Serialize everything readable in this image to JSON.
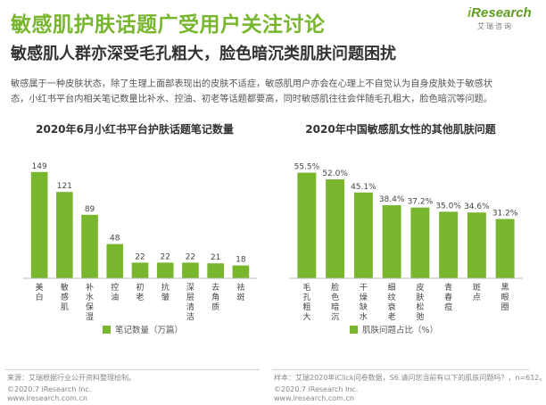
{
  "header": {
    "title": "敏感肌护肤话题广受用户关注讨论",
    "subtitle": "敏感肌人群亦深受毛孔粗大，脸色暗沉类肌肤问题困扰",
    "logo": {
      "brand_i": "i",
      "brand_rest": "Research",
      "sub": "艾瑞咨询"
    }
  },
  "description": [
    "敏感属于一种皮肤状态，除了生理上面部表现出的皮肤不适症，敏感肌用户亦会在心理上不自觉认为自身皮肤处于敏感状",
    "态，小红书平台内相关笔记数量比补水、控油、初老等话题都要高，同时敏感肌往往会伴随毛孔粗大，脸色暗沉等问题。"
  ],
  "colors": {
    "bar": "#78b62e",
    "title": "#78b62e",
    "axis": "#bdbdbd"
  },
  "chart_data": [
    {
      "type": "bar",
      "title": "2020年6月小红书平台护肤话题笔记数量",
      "categories": [
        "美白",
        "敏感肌",
        "补水保湿",
        "控油",
        "初老",
        "抗皱",
        "深层清洁",
        "去角质",
        "祛斑"
      ],
      "values": [
        149,
        121,
        89,
        48,
        22,
        22,
        22,
        21,
        18
      ],
      "value_labels": [
        "149",
        "121",
        "89",
        "48",
        "22",
        "22",
        "22",
        "21",
        "18"
      ],
      "legend": "笔记数量（万篇）",
      "ylim": [
        0,
        160
      ]
    },
    {
      "type": "bar",
      "title": "2020年中国敏感肌女性的其他肌肤问题",
      "categories": [
        "毛孔粗大",
        "脸色暗沉",
        "干燥缺水",
        "细纹衰老",
        "皮肤松弛",
        "青春痘",
        "斑点",
        "黑眼圈"
      ],
      "values": [
        55.5,
        52.0,
        45.1,
        38.4,
        37.2,
        35.0,
        34.6,
        31.2
      ],
      "value_labels": [
        "55.5%",
        "52.0%",
        "45.1%",
        "38.4%",
        "37.2%",
        "35.0%",
        "34.6%",
        "31.2%"
      ],
      "legend": "肌肤问题占比（%）",
      "ylim": [
        0,
        60
      ]
    }
  ],
  "footer": {
    "left_note": "来源：艾瑞根据行业公开资料整理绘制。",
    "right_note": "样本：艾瑞2020年iClick问卷数据，S6.请问您当前有以下的肌肤问题吗？，n=612。",
    "copyright": "©2020.7 iResearch Inc.",
    "website": "www.iresearch.com.cn"
  }
}
